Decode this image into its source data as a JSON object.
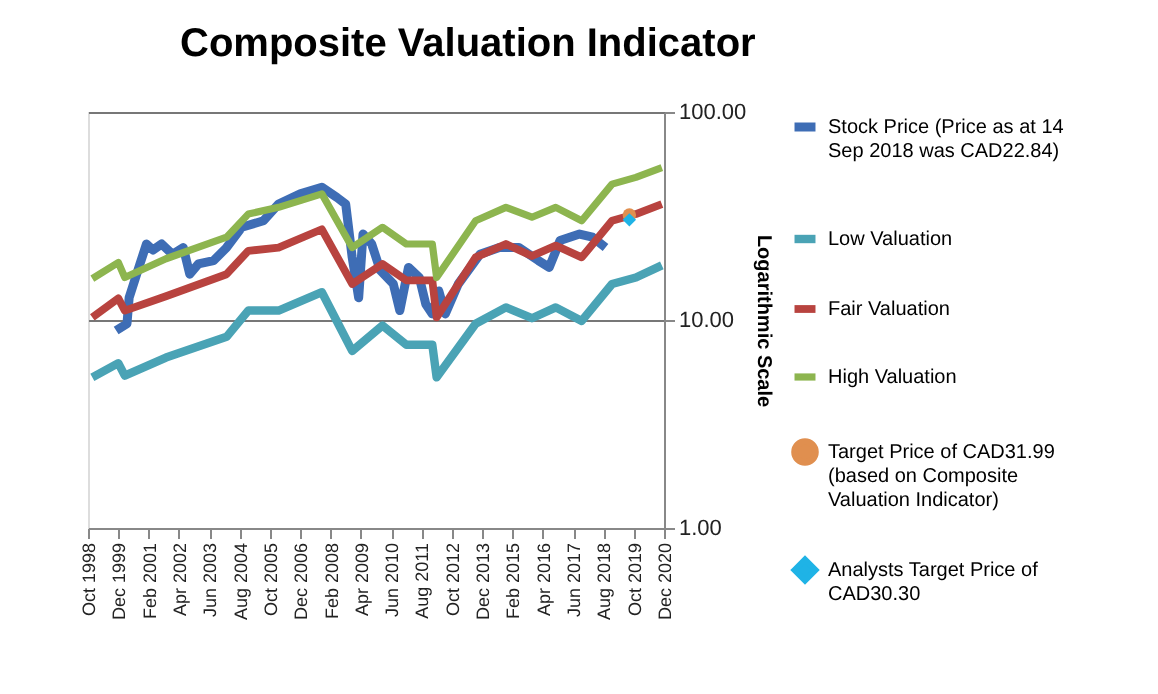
{
  "chart_data": {
    "type": "line",
    "title": "Composite Valuation Indicator",
    "ylabel": "Logarithmic Scale",
    "log": "y",
    "ylim": [
      1,
      100
    ],
    "yticks": [
      {
        "value": 1,
        "label": "1.00"
      },
      {
        "value": 10,
        "label": "10.00"
      },
      {
        "value": 100,
        "label": "100.00"
      }
    ],
    "xlim": [
      "1998-10",
      "2020-12"
    ],
    "xticks": [
      {
        "value": "1998-10",
        "label": "Oct 1998"
      },
      {
        "value": "1999-12",
        "label": "Dec 1999"
      },
      {
        "value": "2001-02",
        "label": "Feb 2001"
      },
      {
        "value": "2002-04",
        "label": "Apr 2002"
      },
      {
        "value": "2003-06",
        "label": "Jun 2003"
      },
      {
        "value": "2004-08",
        "label": "Aug 2004"
      },
      {
        "value": "2005-10",
        "label": "Oct 2005"
      },
      {
        "value": "2006-12",
        "label": "Dec 2006"
      },
      {
        "value": "2008-02",
        "label": "Feb 2008"
      },
      {
        "value": "2009-04",
        "label": "Apr 2009"
      },
      {
        "value": "2010-06",
        "label": "Jun 2010"
      },
      {
        "value": "2011-08",
        "label": "Aug 2011"
      },
      {
        "value": "2012-10",
        "label": "Oct 2012"
      },
      {
        "value": "2013-12",
        "label": "Dec 2013"
      },
      {
        "value": "2015-02",
        "label": "Feb 2015"
      },
      {
        "value": "2016-04",
        "label": "Apr 2016"
      },
      {
        "value": "2017-06",
        "label": "Jun 2017"
      },
      {
        "value": "2018-08",
        "label": "Aug 2018"
      },
      {
        "value": "2019-10",
        "label": "Oct 2019"
      },
      {
        "value": "2020-12",
        "label": "Dec 2020"
      }
    ],
    "grid": "y",
    "legend": "right",
    "line_style": "solid",
    "series": [
      {
        "name": "Stock Price (Price as at 14 Sep 2018 was CAD22.84)",
        "color": "#3e6db5",
        "x": [
          "1999-11",
          "2000-04",
          "2000-05",
          "2000-10",
          "2001-01",
          "2001-04",
          "2001-08",
          "2002-01",
          "2002-06",
          "2002-09",
          "2003-01",
          "2003-08",
          "2004-02",
          "2004-09",
          "2005-07",
          "2006-02",
          "2006-12",
          "2007-10",
          "2008-05",
          "2008-09",
          "2008-12",
          "2009-03",
          "2009-05",
          "2009-09",
          "2010-01",
          "2010-07",
          "2010-10",
          "2011-02",
          "2011-07",
          "2011-10",
          "2012-01",
          "2012-04",
          "2012-07",
          "2013-01",
          "2013-11",
          "2014-08",
          "2015-05",
          "2016-02",
          "2016-07",
          "2016-12",
          "2017-09",
          "2018-03",
          "2018-09"
        ],
        "values": [
          8.9,
          9.6,
          12.8,
          18.6,
          23.2,
          21.7,
          23.2,
          20.7,
          22.3,
          16.6,
          18.6,
          19.3,
          22.3,
          27.9,
          30,
          36.1,
          40.4,
          43.5,
          38.8,
          36.1,
          20,
          12.8,
          25.9,
          23.2,
          17.3,
          14.9,
          11.1,
          17.9,
          16,
          11.9,
          10.7,
          13.8,
          10.7,
          14.9,
          20.7,
          22.3,
          22.3,
          19.3,
          17.9,
          24.1,
          25.9,
          25,
          22.3
        ]
      },
      {
        "name": "Low Valuation",
        "color": "#4aa3b5",
        "x": [
          "1998-12",
          "1999-12",
          "2000-03",
          "2001-10",
          "2004-02",
          "2004-12",
          "2006-02",
          "2007-10",
          "2008-12",
          "2010-02",
          "2011-01",
          "2012-01",
          "2012-03",
          "2013-09",
          "2014-11",
          "2015-11",
          "2016-10",
          "2017-10",
          "2018-12",
          "2019-11",
          "2020-11"
        ],
        "values": [
          5.3,
          6.2,
          5.4,
          6.6,
          8.3,
          11.1,
          11.1,
          13.6,
          7.1,
          9.4,
          7.6,
          7.6,
          5.3,
          9.6,
          11.5,
          10.2,
          11.5,
          9.9,
          14.9,
          16,
          18.3
        ]
      },
      {
        "name": "Fair Valuation",
        "color": "#b8433f",
        "x": [
          "1998-12",
          "1999-12",
          "2000-03",
          "2001-10",
          "2004-02",
          "2004-12",
          "2006-02",
          "2007-10",
          "2008-12",
          "2010-02",
          "2011-01",
          "2012-01",
          "2012-03",
          "2013-09",
          "2014-11",
          "2015-11",
          "2016-10",
          "2017-10",
          "2018-12",
          "2019-11",
          "2020-11"
        ],
        "values": [
          10.3,
          12.7,
          11.1,
          13,
          16.6,
          21.5,
          22.3,
          27.3,
          14.9,
          18.6,
          15.5,
          15.5,
          10.3,
          20,
          23.2,
          20.3,
          22.8,
          20,
          30,
          32.3,
          36.1
        ]
      },
      {
        "name": "High Valuation",
        "color": "#8db54f",
        "x": [
          "1998-12",
          "1999-12",
          "2000-03",
          "2001-10",
          "2004-02",
          "2004-12",
          "2006-02",
          "2007-10",
          "2008-12",
          "2010-02",
          "2011-01",
          "2012-01",
          "2012-03",
          "2013-09",
          "2014-11",
          "2015-11",
          "2016-10",
          "2017-10",
          "2018-12",
          "2019-11",
          "2020-11"
        ],
        "values": [
          15.8,
          18.9,
          16,
          19.7,
          25,
          32.3,
          34.8,
          40.4,
          22.3,
          27.9,
          23.2,
          23.2,
          16,
          30,
          34.8,
          31.2,
          34.8,
          30,
          45,
          48.5,
          54
        ]
      },
      {
        "name": "Target Price of CAD31.99 (based on Composite Valuation Indicator)",
        "color": "#e08f4f",
        "type": "scatter",
        "marker": "circle",
        "x": [
          "2019-08"
        ],
        "values": [
          31.99
        ]
      },
      {
        "name": "Analysts Target Price of CAD30.30",
        "color": "#1fb3e6",
        "type": "scatter",
        "marker": "diamond",
        "x": [
          "2019-08"
        ],
        "values": [
          30.3
        ]
      }
    ]
  }
}
